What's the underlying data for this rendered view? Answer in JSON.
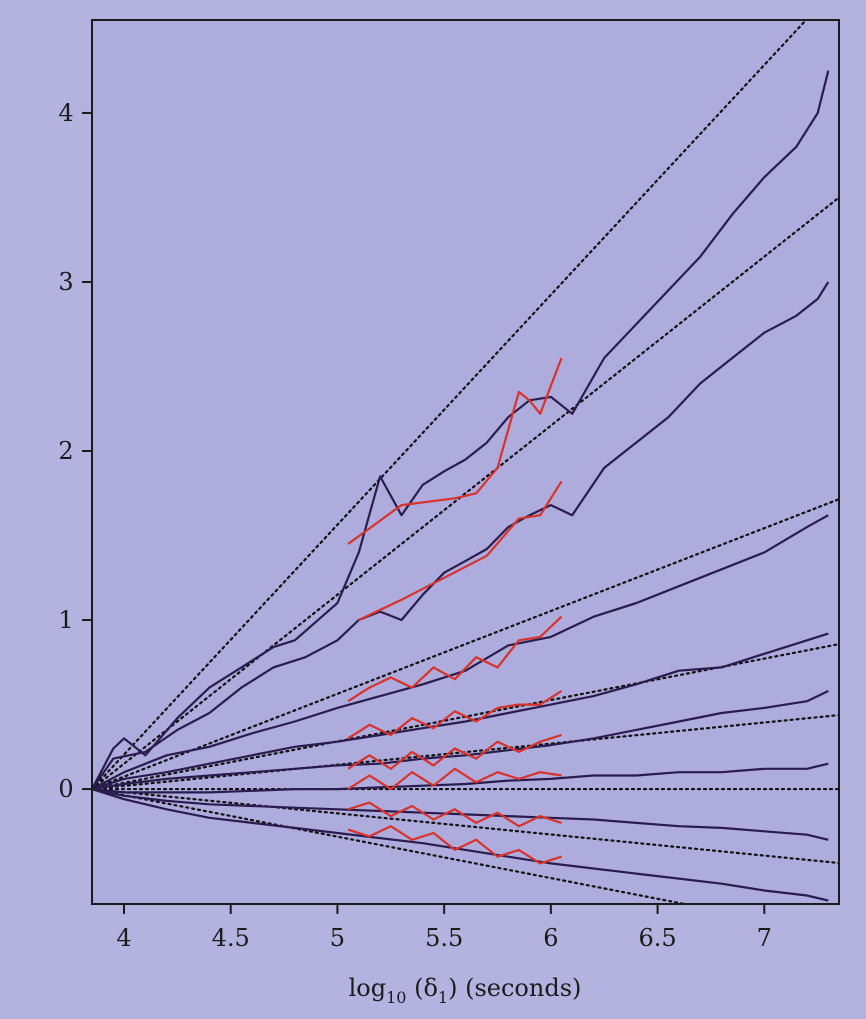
{
  "chart_data": {
    "type": "line",
    "title": "",
    "xlabel": {
      "base": "log",
      "sub": "10",
      "mid": " (δ",
      "sub2": "1",
      "tail": ") (seconds)"
    },
    "ylabel": "",
    "xlim": [
      3.85,
      7.35
    ],
    "ylim": [
      -0.68,
      4.55
    ],
    "x_ticks": [
      {
        "value": 4,
        "label": "4"
      },
      {
        "value": 4.5,
        "label": "4.5"
      },
      {
        "value": 5,
        "label": "5"
      },
      {
        "value": 5.5,
        "label": "5.5"
      },
      {
        "value": 6,
        "label": "6"
      },
      {
        "value": 6.5,
        "label": "6.5"
      },
      {
        "value": 7,
        "label": "7"
      }
    ],
    "y_ticks": [
      {
        "value": 0,
        "label": "0"
      },
      {
        "value": 1,
        "label": "1"
      },
      {
        "value": 2,
        "label": "2"
      },
      {
        "value": 3,
        "label": "3"
      },
      {
        "value": 4,
        "label": "4"
      }
    ],
    "grid": false,
    "legend": "none",
    "colors": {
      "background": "#b4b2df",
      "plot_bg": "#aeacdc",
      "series": "#2a1d4e",
      "overlay": "#d9322a",
      "reference": "#111111"
    },
    "x_origin": 3.85,
    "reference_slopes": [
      1.36,
      1.0,
      0.49,
      0.245,
      0.125,
      0.0,
      -0.125,
      -0.245
    ],
    "series": [
      {
        "points": [
          [
            3.85,
            0
          ],
          [
            3.95,
            0.24
          ],
          [
            4.0,
            0.3
          ],
          [
            4.1,
            0.2
          ],
          [
            4.25,
            0.42
          ],
          [
            4.4,
            0.6
          ],
          [
            4.55,
            0.72
          ],
          [
            4.7,
            0.84
          ],
          [
            4.8,
            0.88
          ],
          [
            5.0,
            1.1
          ],
          [
            5.1,
            1.4
          ],
          [
            5.2,
            1.85
          ],
          [
            5.3,
            1.62
          ],
          [
            5.4,
            1.8
          ],
          [
            5.5,
            1.88
          ],
          [
            5.6,
            1.95
          ],
          [
            5.7,
            2.05
          ],
          [
            5.8,
            2.2
          ],
          [
            5.9,
            2.3
          ],
          [
            6.0,
            2.32
          ],
          [
            6.1,
            2.22
          ],
          [
            6.25,
            2.55
          ],
          [
            6.4,
            2.75
          ],
          [
            6.55,
            2.95
          ],
          [
            6.7,
            3.15
          ],
          [
            6.85,
            3.4
          ],
          [
            7.0,
            3.62
          ],
          [
            7.15,
            3.8
          ],
          [
            7.25,
            4.0
          ],
          [
            7.3,
            4.25
          ]
        ]
      },
      {
        "points": [
          [
            3.85,
            0
          ],
          [
            3.95,
            0.18
          ],
          [
            4.1,
            0.22
          ],
          [
            4.25,
            0.35
          ],
          [
            4.4,
            0.45
          ],
          [
            4.55,
            0.6
          ],
          [
            4.7,
            0.72
          ],
          [
            4.85,
            0.78
          ],
          [
            5.0,
            0.88
          ],
          [
            5.1,
            1.0
          ],
          [
            5.2,
            1.05
          ],
          [
            5.3,
            1.0
          ],
          [
            5.4,
            1.15
          ],
          [
            5.5,
            1.28
          ],
          [
            5.6,
            1.35
          ],
          [
            5.7,
            1.42
          ],
          [
            5.8,
            1.55
          ],
          [
            5.9,
            1.62
          ],
          [
            6.0,
            1.68
          ],
          [
            6.1,
            1.62
          ],
          [
            6.25,
            1.9
          ],
          [
            6.4,
            2.05
          ],
          [
            6.55,
            2.2
          ],
          [
            6.7,
            2.4
          ],
          [
            6.85,
            2.55
          ],
          [
            7.0,
            2.7
          ],
          [
            7.15,
            2.8
          ],
          [
            7.25,
            2.9
          ],
          [
            7.3,
            3.0
          ]
        ]
      },
      {
        "points": [
          [
            3.85,
            0
          ],
          [
            4.0,
            0.1
          ],
          [
            4.2,
            0.2
          ],
          [
            4.4,
            0.25
          ],
          [
            4.6,
            0.33
          ],
          [
            4.8,
            0.4
          ],
          [
            5.0,
            0.48
          ],
          [
            5.2,
            0.55
          ],
          [
            5.4,
            0.62
          ],
          [
            5.6,
            0.7
          ],
          [
            5.8,
            0.85
          ],
          [
            6.0,
            0.9
          ],
          [
            6.2,
            1.02
          ],
          [
            6.4,
            1.1
          ],
          [
            6.6,
            1.2
          ],
          [
            6.8,
            1.3
          ],
          [
            7.0,
            1.4
          ],
          [
            7.2,
            1.55
          ],
          [
            7.3,
            1.62
          ]
        ]
      },
      {
        "points": [
          [
            3.85,
            0
          ],
          [
            4.0,
            0.06
          ],
          [
            4.2,
            0.1
          ],
          [
            4.4,
            0.15
          ],
          [
            4.6,
            0.2
          ],
          [
            4.8,
            0.25
          ],
          [
            5.0,
            0.28
          ],
          [
            5.2,
            0.32
          ],
          [
            5.4,
            0.36
          ],
          [
            5.6,
            0.4
          ],
          [
            5.8,
            0.45
          ],
          [
            6.0,
            0.5
          ],
          [
            6.2,
            0.55
          ],
          [
            6.4,
            0.62
          ],
          [
            6.6,
            0.7
          ],
          [
            6.8,
            0.72
          ],
          [
            7.0,
            0.8
          ],
          [
            7.2,
            0.88
          ],
          [
            7.3,
            0.92
          ]
        ]
      },
      {
        "points": [
          [
            3.85,
            0
          ],
          [
            4.0,
            0.03
          ],
          [
            4.2,
            0.06
          ],
          [
            4.4,
            0.08
          ],
          [
            4.6,
            0.1
          ],
          [
            4.8,
            0.12
          ],
          [
            5.0,
            0.14
          ],
          [
            5.2,
            0.15
          ],
          [
            5.4,
            0.18
          ],
          [
            5.6,
            0.2
          ],
          [
            5.8,
            0.23
          ],
          [
            6.0,
            0.26
          ],
          [
            6.2,
            0.3
          ],
          [
            6.4,
            0.35
          ],
          [
            6.6,
            0.4
          ],
          [
            6.8,
            0.45
          ],
          [
            7.0,
            0.48
          ],
          [
            7.2,
            0.52
          ],
          [
            7.3,
            0.58
          ]
        ]
      },
      {
        "points": [
          [
            3.85,
            0
          ],
          [
            4.0,
            -0.02
          ],
          [
            4.2,
            -0.02
          ],
          [
            4.4,
            -0.02
          ],
          [
            4.6,
            -0.01
          ],
          [
            4.8,
            0.0
          ],
          [
            5.0,
            0.0
          ],
          [
            5.2,
            0.01
          ],
          [
            5.4,
            0.02
          ],
          [
            5.6,
            0.03
          ],
          [
            5.8,
            0.05
          ],
          [
            6.0,
            0.06
          ],
          [
            6.2,
            0.08
          ],
          [
            6.4,
            0.08
          ],
          [
            6.6,
            0.1
          ],
          [
            6.8,
            0.1
          ],
          [
            7.0,
            0.12
          ],
          [
            7.2,
            0.12
          ],
          [
            7.3,
            0.15
          ]
        ]
      },
      {
        "points": [
          [
            3.85,
            0
          ],
          [
            4.0,
            -0.04
          ],
          [
            4.2,
            -0.07
          ],
          [
            4.4,
            -0.09
          ],
          [
            4.6,
            -0.1
          ],
          [
            4.8,
            -0.11
          ],
          [
            5.0,
            -0.12
          ],
          [
            5.2,
            -0.13
          ],
          [
            5.4,
            -0.14
          ],
          [
            5.6,
            -0.15
          ],
          [
            5.8,
            -0.16
          ],
          [
            6.0,
            -0.17
          ],
          [
            6.2,
            -0.18
          ],
          [
            6.4,
            -0.2
          ],
          [
            6.6,
            -0.22
          ],
          [
            6.8,
            -0.23
          ],
          [
            7.0,
            -0.25
          ],
          [
            7.2,
            -0.27
          ],
          [
            7.3,
            -0.3
          ]
        ]
      },
      {
        "points": [
          [
            3.85,
            0
          ],
          [
            4.0,
            -0.06
          ],
          [
            4.2,
            -0.12
          ],
          [
            4.4,
            -0.17
          ],
          [
            4.6,
            -0.2
          ],
          [
            4.8,
            -0.23
          ],
          [
            5.0,
            -0.26
          ],
          [
            5.2,
            -0.29
          ],
          [
            5.4,
            -0.32
          ],
          [
            5.6,
            -0.36
          ],
          [
            5.8,
            -0.4
          ],
          [
            6.0,
            -0.44
          ],
          [
            6.2,
            -0.47
          ],
          [
            6.4,
            -0.5
          ],
          [
            6.6,
            -0.53
          ],
          [
            6.8,
            -0.56
          ],
          [
            7.0,
            -0.6
          ],
          [
            7.2,
            -0.63
          ],
          [
            7.3,
            -0.66
          ]
        ]
      }
    ],
    "overlay_series": [
      {
        "points": [
          [
            5.05,
            1.45
          ],
          [
            5.3,
            1.68
          ],
          [
            5.55,
            1.72
          ],
          [
            5.65,
            1.75
          ],
          [
            5.75,
            1.9
          ],
          [
            5.85,
            2.35
          ],
          [
            5.9,
            2.3
          ],
          [
            5.95,
            2.22
          ],
          [
            6.05,
            2.55
          ]
        ]
      },
      {
        "points": [
          [
            5.1,
            1.0
          ],
          [
            5.3,
            1.12
          ],
          [
            5.5,
            1.25
          ],
          [
            5.7,
            1.38
          ],
          [
            5.85,
            1.6
          ],
          [
            5.95,
            1.62
          ],
          [
            6.05,
            1.82
          ]
        ]
      },
      {
        "points": [
          [
            5.05,
            0.52
          ],
          [
            5.15,
            0.6
          ],
          [
            5.25,
            0.66
          ],
          [
            5.35,
            0.6
          ],
          [
            5.45,
            0.72
          ],
          [
            5.55,
            0.65
          ],
          [
            5.65,
            0.78
          ],
          [
            5.75,
            0.72
          ],
          [
            5.85,
            0.88
          ],
          [
            5.95,
            0.9
          ],
          [
            6.05,
            1.02
          ]
        ]
      },
      {
        "points": [
          [
            5.05,
            0.3
          ],
          [
            5.15,
            0.38
          ],
          [
            5.25,
            0.32
          ],
          [
            5.35,
            0.42
          ],
          [
            5.45,
            0.36
          ],
          [
            5.55,
            0.46
          ],
          [
            5.65,
            0.4
          ],
          [
            5.75,
            0.48
          ],
          [
            5.85,
            0.5
          ],
          [
            5.95,
            0.5
          ],
          [
            6.05,
            0.58
          ]
        ]
      },
      {
        "points": [
          [
            5.05,
            0.12
          ],
          [
            5.15,
            0.2
          ],
          [
            5.25,
            0.12
          ],
          [
            5.35,
            0.22
          ],
          [
            5.45,
            0.14
          ],
          [
            5.55,
            0.24
          ],
          [
            5.65,
            0.18
          ],
          [
            5.75,
            0.28
          ],
          [
            5.85,
            0.22
          ],
          [
            5.95,
            0.28
          ],
          [
            6.05,
            0.32
          ]
        ]
      },
      {
        "points": [
          [
            5.05,
            0.0
          ],
          [
            5.15,
            0.08
          ],
          [
            5.25,
            0.0
          ],
          [
            5.35,
            0.1
          ],
          [
            5.45,
            0.02
          ],
          [
            5.55,
            0.12
          ],
          [
            5.65,
            0.04
          ],
          [
            5.75,
            0.1
          ],
          [
            5.85,
            0.06
          ],
          [
            5.95,
            0.1
          ],
          [
            6.05,
            0.08
          ]
        ]
      },
      {
        "points": [
          [
            5.05,
            -0.12
          ],
          [
            5.15,
            -0.08
          ],
          [
            5.25,
            -0.16
          ],
          [
            5.35,
            -0.1
          ],
          [
            5.45,
            -0.18
          ],
          [
            5.55,
            -0.12
          ],
          [
            5.65,
            -0.2
          ],
          [
            5.75,
            -0.14
          ],
          [
            5.85,
            -0.22
          ],
          [
            5.95,
            -0.16
          ],
          [
            6.05,
            -0.2
          ]
        ]
      },
      {
        "points": [
          [
            5.05,
            -0.24
          ],
          [
            5.15,
            -0.28
          ],
          [
            5.25,
            -0.22
          ],
          [
            5.35,
            -0.3
          ],
          [
            5.45,
            -0.26
          ],
          [
            5.55,
            -0.36
          ],
          [
            5.65,
            -0.3
          ],
          [
            5.75,
            -0.4
          ],
          [
            5.85,
            -0.36
          ],
          [
            5.95,
            -0.44
          ],
          [
            6.05,
            -0.4
          ]
        ]
      }
    ]
  }
}
